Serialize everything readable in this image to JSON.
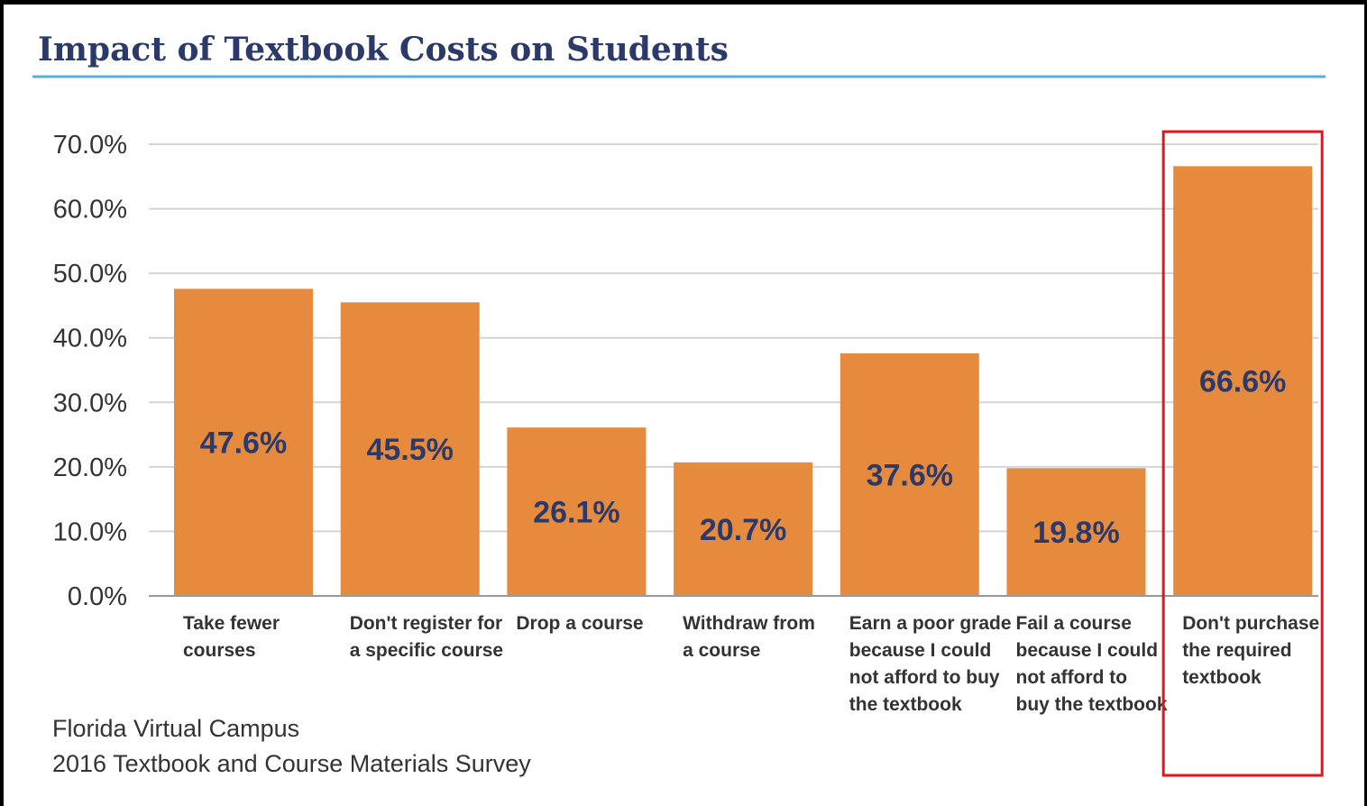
{
  "chart_data": {
    "type": "bar",
    "title": "Impact of Textbook Costs on Students",
    "categories": [
      [
        "Take fewer",
        "courses"
      ],
      [
        "Don't register for",
        "a specific course"
      ],
      [
        "Drop a course"
      ],
      [
        "Withdraw from",
        "a  course"
      ],
      [
        "Earn a poor grade",
        "because I could",
        "not afford to buy",
        "the textbook"
      ],
      [
        "Fail a course",
        "because I could",
        "not afford to",
        "buy the textbook"
      ],
      [
        "Don't purchase",
        "the required",
        "textbook"
      ]
    ],
    "values": [
      47.6,
      45.5,
      26.1,
      20.7,
      37.6,
      19.8,
      66.6
    ],
    "value_labels": [
      "47.6%",
      "45.5%",
      "26.1%",
      "20.7%",
      "37.6%",
      "19.8%",
      "66.6%"
    ],
    "y_ticks": [
      "0.0%",
      "10.0%",
      "20.0%",
      "30.0%",
      "40.0%",
      "50.0%",
      "60.0%",
      "70.0%"
    ],
    "ylim": [
      0,
      70
    ],
    "xlabel": "",
    "ylabel": "",
    "grid": true,
    "highlighted_category_index": 6
  },
  "source": [
    "Florida Virtual Campus",
    "2016 Textbook and Course Materials Survey"
  ],
  "colors": {
    "bar": "#E68A3E",
    "value_label": "#2B3A6B",
    "title": "#2B3A6B",
    "title_rule": "#5BAEE0",
    "grid": "#D4D4D4",
    "axis": "#999999",
    "highlight_box": "#E8141B"
  }
}
